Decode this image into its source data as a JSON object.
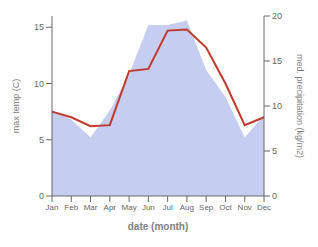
{
  "chart_data": {
    "type": "line",
    "categories": [
      "Jan",
      "Feb",
      "Mar",
      "Apr",
      "May",
      "Jun",
      "Jul",
      "Aug",
      "Sep",
      "Oct",
      "Nov",
      "Dec"
    ],
    "series": [
      {
        "type": "area",
        "color": "#c5cdf0",
        "values": [
          9.5,
          8.5,
          6.5,
          9.5,
          13.5,
          19.0,
          19.0,
          19.5,
          14.0,
          11.0,
          6.5,
          9.0
        ],
        "axis": "y2"
      },
      {
        "type": "line",
        "color": "#c0392b",
        "values": [
          7.5,
          7.0,
          6.2,
          6.3,
          11.1,
          11.3,
          14.7,
          14.8,
          13.2,
          10.0,
          6.3,
          7.0
        ]
      }
    ],
    "xlabel": "date (month)",
    "ylabel": "max temp (C)",
    "y2label": "med. precipitation (kg/m2)",
    "ylim": [
      0,
      16
    ],
    "yticks": [
      0,
      5,
      10,
      15
    ],
    "y2lim": [
      0,
      20
    ],
    "y2ticks": [
      0,
      5,
      10,
      15,
      20
    ],
    "grid": false
  }
}
